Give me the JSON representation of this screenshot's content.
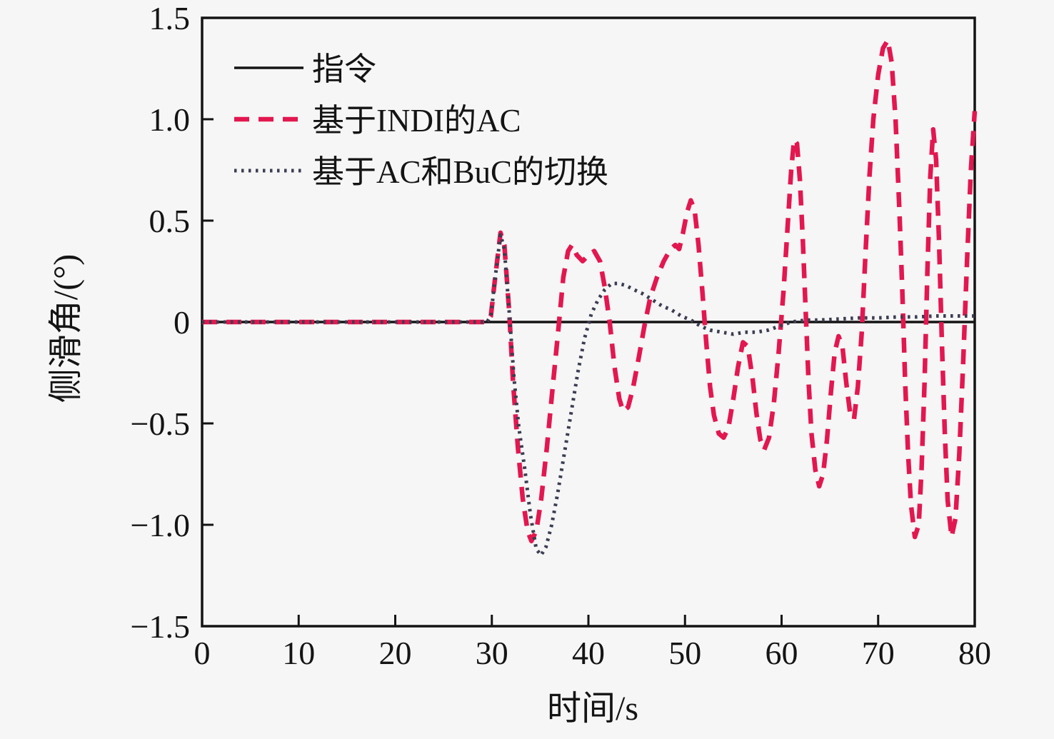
{
  "figure": {
    "background": "#f6f6f6",
    "frame_color": "#141414"
  },
  "chart_data": {
    "type": "line",
    "title": "",
    "xlabel": "时间/s",
    "ylabel": "侧滑角/(°)",
    "xlim": [
      0,
      80
    ],
    "ylim": [
      -1.5,
      1.5
    ],
    "xticks": [
      0,
      10,
      20,
      30,
      40,
      50,
      60,
      70,
      80
    ],
    "xtick_labels": [
      "0",
      "10",
      "20",
      "30",
      "40",
      "50",
      "60",
      "70",
      "80"
    ],
    "yticks": [
      -1.5,
      -1.0,
      -0.5,
      0,
      0.5,
      1.0,
      1.5
    ],
    "ytick_labels": [
      "−1.5",
      "−1.0",
      "−0.5",
      "0",
      "0.5",
      "1.0",
      "1.5"
    ],
    "grid": false,
    "legend_position": "top-left-inside-no-border",
    "legend": {
      "entries": [
        {
          "label": "指令"
        },
        {
          "label": "基于INDI的AC"
        },
        {
          "label": "基于AC和BuC的切换"
        }
      ]
    },
    "series": [
      {
        "name": "指令",
        "style": "solid",
        "color": "#141414",
        "width": 3.5,
        "points": [
          [
            0,
            0
          ],
          [
            80,
            0
          ]
        ]
      },
      {
        "name": "基于INDI的AC",
        "style": "dashed",
        "color": "#e3174f",
        "width": 6.5,
        "dash": [
          21,
          13
        ],
        "points": [
          [
            0,
            0
          ],
          [
            10,
            0
          ],
          [
            20,
            0
          ],
          [
            28,
            0
          ],
          [
            29.5,
            0
          ],
          [
            29.9,
            0.03
          ],
          [
            30.3,
            0.2
          ],
          [
            30.9,
            0.44
          ],
          [
            31.3,
            0.38
          ],
          [
            31.8,
            0.05
          ],
          [
            32.2,
            -0.3
          ],
          [
            32.7,
            -0.62
          ],
          [
            33.2,
            -0.87
          ],
          [
            33.7,
            -1.03
          ],
          [
            34.1,
            -1.08
          ],
          [
            34.6,
            -1.03
          ],
          [
            35.1,
            -0.88
          ],
          [
            35.7,
            -0.62
          ],
          [
            36.3,
            -0.32
          ],
          [
            36.9,
            -0.03
          ],
          [
            37.4,
            0.22
          ],
          [
            37.9,
            0.35
          ],
          [
            38.3,
            0.38
          ],
          [
            38.8,
            0.33
          ],
          [
            39.4,
            0.3
          ],
          [
            40.0,
            0.33
          ],
          [
            40.6,
            0.35
          ],
          [
            41.2,
            0.3
          ],
          [
            41.7,
            0.17
          ],
          [
            42.2,
            0.0
          ],
          [
            42.7,
            -0.22
          ],
          [
            43.2,
            -0.38
          ],
          [
            43.6,
            -0.44
          ],
          [
            44.1,
            -0.42
          ],
          [
            44.6,
            -0.33
          ],
          [
            45.2,
            -0.18
          ],
          [
            45.8,
            -0.02
          ],
          [
            46.4,
            0.12
          ],
          [
            47.1,
            0.22
          ],
          [
            47.8,
            0.3
          ],
          [
            48.5,
            0.36
          ],
          [
            49.0,
            0.38
          ],
          [
            49.4,
            0.36
          ],
          [
            49.8,
            0.44
          ],
          [
            50.2,
            0.54
          ],
          [
            50.6,
            0.6
          ],
          [
            51.0,
            0.55
          ],
          [
            51.4,
            0.38
          ],
          [
            51.8,
            0.15
          ],
          [
            52.2,
            -0.1
          ],
          [
            52.6,
            -0.32
          ],
          [
            53.0,
            -0.46
          ],
          [
            53.5,
            -0.55
          ],
          [
            54.0,
            -0.57
          ],
          [
            54.5,
            -0.52
          ],
          [
            55.0,
            -0.38
          ],
          [
            55.5,
            -0.22
          ],
          [
            56.0,
            -0.1
          ],
          [
            56.5,
            -0.12
          ],
          [
            57.0,
            -0.28
          ],
          [
            57.4,
            -0.45
          ],
          [
            57.8,
            -0.58
          ],
          [
            58.2,
            -0.63
          ],
          [
            58.7,
            -0.57
          ],
          [
            59.2,
            -0.4
          ],
          [
            59.7,
            -0.15
          ],
          [
            60.2,
            0.15
          ],
          [
            60.6,
            0.45
          ],
          [
            61.0,
            0.75
          ],
          [
            61.3,
            0.9
          ],
          [
            61.6,
            0.88
          ],
          [
            61.9,
            0.7
          ],
          [
            62.2,
            0.4
          ],
          [
            62.5,
            0.05
          ],
          [
            62.8,
            -0.3
          ],
          [
            63.1,
            -0.55
          ],
          [
            63.5,
            -0.73
          ],
          [
            63.9,
            -0.81
          ],
          [
            64.3,
            -0.75
          ],
          [
            64.7,
            -0.58
          ],
          [
            65.1,
            -0.35
          ],
          [
            65.5,
            -0.15
          ],
          [
            65.9,
            -0.07
          ],
          [
            66.3,
            -0.12
          ],
          [
            66.7,
            -0.3
          ],
          [
            67.1,
            -0.45
          ],
          [
            67.5,
            -0.48
          ],
          [
            67.9,
            -0.32
          ],
          [
            68.3,
            -0.05
          ],
          [
            68.7,
            0.35
          ],
          [
            69.1,
            0.72
          ],
          [
            69.5,
            1.0
          ],
          [
            70.0,
            1.22
          ],
          [
            70.5,
            1.35
          ],
          [
            71.0,
            1.39
          ],
          [
            71.4,
            1.28
          ],
          [
            71.8,
            1.0
          ],
          [
            72.2,
            0.55
          ],
          [
            72.5,
            0.15
          ],
          [
            72.8,
            -0.3
          ],
          [
            73.1,
            -0.65
          ],
          [
            73.4,
            -0.9
          ],
          [
            73.8,
            -1.06
          ],
          [
            74.2,
            -1.0
          ],
          [
            74.5,
            -0.72
          ],
          [
            74.8,
            -0.3
          ],
          [
            75.1,
            0.25
          ],
          [
            75.4,
            0.72
          ],
          [
            75.7,
            0.95
          ],
          [
            76.0,
            0.8
          ],
          [
            76.3,
            0.4
          ],
          [
            76.6,
            -0.1
          ],
          [
            76.9,
            -0.55
          ],
          [
            77.2,
            -0.88
          ],
          [
            77.6,
            -1.06
          ],
          [
            78.0,
            -0.97
          ],
          [
            78.4,
            -0.65
          ],
          [
            78.8,
            -0.2
          ],
          [
            79.2,
            0.3
          ],
          [
            79.6,
            0.75
          ],
          [
            80,
            1.04
          ]
        ]
      },
      {
        "name": "基于AC和BuC的切换",
        "style": "dotted",
        "color": "#3b3d52",
        "width": 5,
        "dash": [
          3.5,
          6.5
        ],
        "points": [
          [
            0,
            0
          ],
          [
            10,
            0
          ],
          [
            20,
            0
          ],
          [
            28,
            0
          ],
          [
            29.5,
            0
          ],
          [
            29.9,
            0.03
          ],
          [
            30.3,
            0.2
          ],
          [
            30.9,
            0.43
          ],
          [
            31.3,
            0.36
          ],
          [
            31.8,
            0.05
          ],
          [
            32.3,
            -0.28
          ],
          [
            32.8,
            -0.52
          ],
          [
            33.4,
            -0.72
          ],
          [
            34.0,
            -0.95
          ],
          [
            34.6,
            -1.12
          ],
          [
            35.1,
            -1.15
          ],
          [
            35.6,
            -1.11
          ],
          [
            36.2,
            -1.0
          ],
          [
            36.8,
            -0.85
          ],
          [
            37.5,
            -0.65
          ],
          [
            38.2,
            -0.45
          ],
          [
            38.9,
            -0.25
          ],
          [
            39.6,
            -0.08
          ],
          [
            40.3,
            0.04
          ],
          [
            41.0,
            0.11
          ],
          [
            41.7,
            0.16
          ],
          [
            42.4,
            0.19
          ],
          [
            43.1,
            0.19
          ],
          [
            43.9,
            0.18
          ],
          [
            44.7,
            0.16
          ],
          [
            45.6,
            0.14
          ],
          [
            46.6,
            0.11
          ],
          [
            47.6,
            0.08
          ],
          [
            48.6,
            0.06
          ],
          [
            49.6,
            0.03
          ],
          [
            50.6,
            0.01
          ],
          [
            51.6,
            -0.02
          ],
          [
            52.6,
            -0.04
          ],
          [
            53.8,
            -0.05
          ],
          [
            55.0,
            -0.06
          ],
          [
            56.2,
            -0.05
          ],
          [
            57.4,
            -0.05
          ],
          [
            58.6,
            -0.04
          ],
          [
            59.8,
            -0.02
          ],
          [
            61.0,
            0.0
          ],
          [
            62.5,
            0.01
          ],
          [
            64,
            0.01
          ],
          [
            66,
            0.015
          ],
          [
            68,
            0.02
          ],
          [
            70,
            0.02
          ],
          [
            72,
            0.025
          ],
          [
            74,
            0.025
          ],
          [
            76,
            0.03
          ],
          [
            78,
            0.03
          ],
          [
            80,
            0.03
          ]
        ]
      }
    ]
  }
}
